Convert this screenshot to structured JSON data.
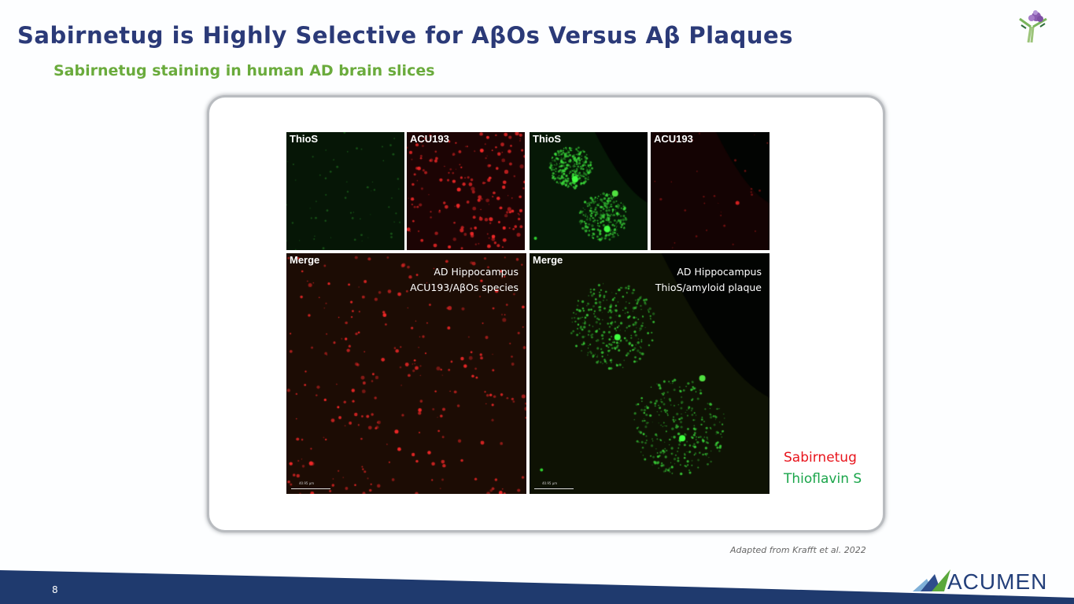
{
  "header": {
    "title": "Sabirnetug is Highly Selective for AβOs Versus Aβ Plaques",
    "subtitle": "Sabirnetug staining in human AD brain slices"
  },
  "figure": {
    "top_panels": [
      {
        "label": "ThioS",
        "channel": "green"
      },
      {
        "label": "ACU193",
        "channel": "red"
      },
      {
        "label": "ThioS",
        "channel": "green"
      },
      {
        "label": "ACU193",
        "channel": "red"
      }
    ],
    "merge_panels": [
      {
        "label": "Merge",
        "annotation": [
          "AD Hippocampus",
          "ACU193/AβOs species"
        ],
        "scale_bar": "40.95 μm"
      },
      {
        "label": "Merge",
        "annotation": [
          "AD Hippocampus",
          "ThioS/amyloid plaque"
        ],
        "scale_bar": "40.95 μm"
      }
    ]
  },
  "legend": [
    {
      "label": "Sabirnetug",
      "color": "#e8141c"
    },
    {
      "label": "Thioflavin S",
      "color": "#1aa54a"
    }
  ],
  "citation": "Adapted from Krafft et al. 2022",
  "footer": {
    "page_number": "8",
    "logo_text": "ACUMEN"
  },
  "colors": {
    "title": "#2b3a78",
    "subtitle": "#6aab3c",
    "footer_band": "#1f3a6e"
  }
}
